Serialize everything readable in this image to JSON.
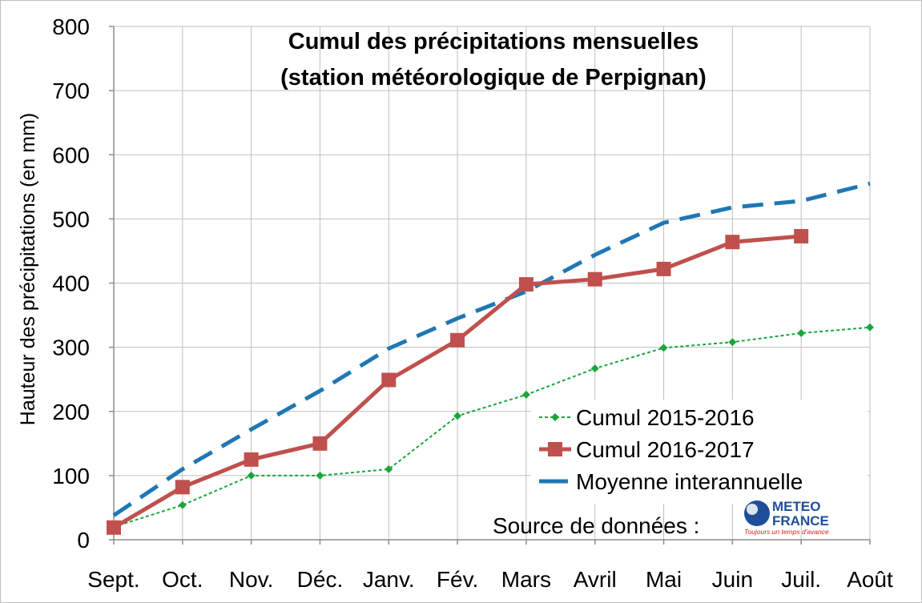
{
  "chart_data": {
    "type": "line",
    "title": "Cumul des précipitations mensuelles",
    "subtitle": "(station météorologique de Perpignan)",
    "ylabel": "Hauteur des précipitations (en mm)",
    "xlabel": "",
    "categories": [
      "Sept.",
      "Oct.",
      "Nov.",
      "Déc.",
      "Janv.",
      "Fév.",
      "Mars",
      "Avril",
      "Mai",
      "Juin",
      "Juil.",
      "Août"
    ],
    "ylim": [
      0,
      800
    ],
    "yticks": [
      0,
      100,
      200,
      300,
      400,
      500,
      600,
      700,
      800
    ],
    "ytick_labels": [
      "0",
      "100",
      "200",
      "300",
      "400",
      "500",
      "600",
      "700",
      "800"
    ],
    "grid": true,
    "legend_position": "bottom-right",
    "series": [
      {
        "name": "Cumul 2015-2016",
        "color": "#1aa63a",
        "style": "dotted-diamond",
        "values": [
          20,
          54,
          100,
          100,
          110,
          193,
          226,
          267,
          299,
          308,
          322,
          331
        ]
      },
      {
        "name": "Cumul 2016-2017",
        "color": "#c0504d",
        "style": "solid-square",
        "values": [
          19,
          82,
          125,
          150,
          249,
          311,
          398,
          406,
          422,
          464,
          473,
          null
        ]
      },
      {
        "name": "Moyenne interannuelle",
        "color": "#1f77b4",
        "style": "dashed",
        "values": [
          38,
          110,
          172,
          232,
          298,
          345,
          387,
          444,
          494,
          518,
          528,
          555
        ]
      }
    ],
    "source_label": "Source de données :",
    "logo": {
      "line1": "METEO",
      "line2": "FRANCE",
      "tagline": "Toujours un temps d'avance"
    }
  }
}
